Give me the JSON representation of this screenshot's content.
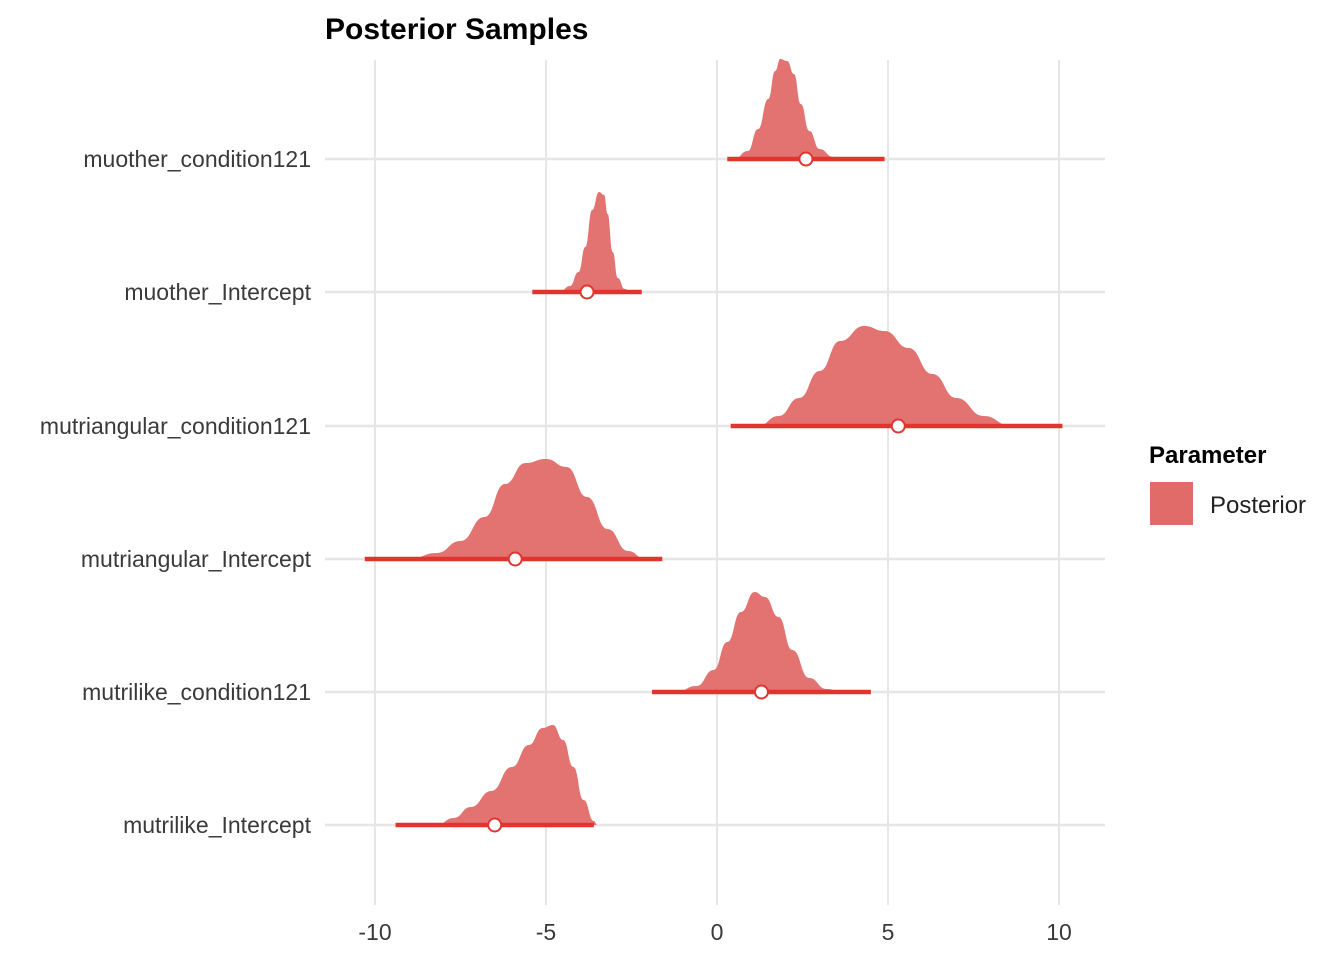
{
  "chart_data": {
    "type": "ridgeline",
    "title": "Posterior Samples",
    "xlabel": "",
    "ylabel": "",
    "xlim": [
      -10.5,
      11.3
    ],
    "x_ticks": [
      -10,
      -5,
      0,
      5,
      10
    ],
    "x_tick_labels": [
      "-10",
      "-5",
      "0",
      "5",
      "10"
    ],
    "grid": true,
    "legend": {
      "title": "Parameter",
      "entries": [
        "Posterior"
      ],
      "placement": "right"
    },
    "colors": {
      "fill": "#e06b68",
      "interval": "#e0352f",
      "point_fill": "#ffffff",
      "grid": "#e6e6e6"
    },
    "series": [
      {
        "label": "muother_condition121",
        "interval": [
          0.3,
          4.9
        ],
        "point": 2.6,
        "density": [
          [
            0.5,
            0.0
          ],
          [
            0.9,
            0.08
          ],
          [
            1.2,
            0.3
          ],
          [
            1.5,
            0.6
          ],
          [
            1.7,
            0.88
          ],
          [
            1.85,
            1.0
          ],
          [
            2.05,
            0.98
          ],
          [
            2.25,
            0.85
          ],
          [
            2.45,
            0.55
          ],
          [
            2.7,
            0.28
          ],
          [
            3.0,
            0.1
          ],
          [
            3.4,
            0.02
          ],
          [
            3.8,
            0.0
          ]
        ]
      },
      {
        "label": "muother_Intercept",
        "interval": [
          -5.4,
          -2.2
        ],
        "point": -3.8,
        "density": [
          [
            -4.6,
            0.0
          ],
          [
            -4.3,
            0.06
          ],
          [
            -4.05,
            0.2
          ],
          [
            -3.85,
            0.45
          ],
          [
            -3.65,
            0.82
          ],
          [
            -3.45,
            1.0
          ],
          [
            -3.3,
            0.97
          ],
          [
            -3.2,
            0.78
          ],
          [
            -3.05,
            0.4
          ],
          [
            -2.9,
            0.14
          ],
          [
            -2.7,
            0.03
          ],
          [
            -2.5,
            0.0
          ]
        ]
      },
      {
        "label": "mutriangular_condition121",
        "interval": [
          0.4,
          10.1
        ],
        "point": 5.3,
        "density": [
          [
            1.2,
            0.0
          ],
          [
            1.8,
            0.1
          ],
          [
            2.4,
            0.28
          ],
          [
            3.0,
            0.55
          ],
          [
            3.6,
            0.85
          ],
          [
            4.3,
            1.0
          ],
          [
            4.9,
            0.95
          ],
          [
            5.6,
            0.78
          ],
          [
            6.3,
            0.52
          ],
          [
            7.0,
            0.28
          ],
          [
            7.8,
            0.1
          ],
          [
            8.6,
            0.0
          ]
        ]
      },
      {
        "label": "mutriangular_Intercept",
        "interval": [
          -10.3,
          -1.6
        ],
        "point": -5.9,
        "density": [
          [
            -9.0,
            0.0
          ],
          [
            -8.2,
            0.06
          ],
          [
            -7.5,
            0.18
          ],
          [
            -6.8,
            0.42
          ],
          [
            -6.2,
            0.75
          ],
          [
            -5.6,
            0.96
          ],
          [
            -5.0,
            1.0
          ],
          [
            -4.4,
            0.92
          ],
          [
            -3.8,
            0.62
          ],
          [
            -3.2,
            0.3
          ],
          [
            -2.6,
            0.08
          ],
          [
            -2.1,
            0.0
          ]
        ]
      },
      {
        "label": "mutrilike_condition121",
        "interval": [
          -1.9,
          4.5
        ],
        "point": 1.3,
        "density": [
          [
            -1.2,
            0.0
          ],
          [
            -0.6,
            0.06
          ],
          [
            -0.1,
            0.22
          ],
          [
            0.3,
            0.5
          ],
          [
            0.7,
            0.8
          ],
          [
            1.1,
            1.0
          ],
          [
            1.4,
            0.95
          ],
          [
            1.8,
            0.75
          ],
          [
            2.2,
            0.42
          ],
          [
            2.7,
            0.14
          ],
          [
            3.2,
            0.03
          ],
          [
            3.7,
            0.0
          ]
        ]
      },
      {
        "label": "mutrilike_Intercept",
        "interval": [
          -9.4,
          -3.6
        ],
        "point": -6.5,
        "density": [
          [
            -8.2,
            0.0
          ],
          [
            -7.7,
            0.07
          ],
          [
            -7.2,
            0.18
          ],
          [
            -6.6,
            0.34
          ],
          [
            -6.0,
            0.58
          ],
          [
            -5.5,
            0.8
          ],
          [
            -5.1,
            0.97
          ],
          [
            -4.8,
            1.0
          ],
          [
            -4.5,
            0.85
          ],
          [
            -4.2,
            0.58
          ],
          [
            -3.9,
            0.25
          ],
          [
            -3.6,
            0.04
          ],
          [
            -3.5,
            0.0
          ]
        ]
      }
    ]
  }
}
